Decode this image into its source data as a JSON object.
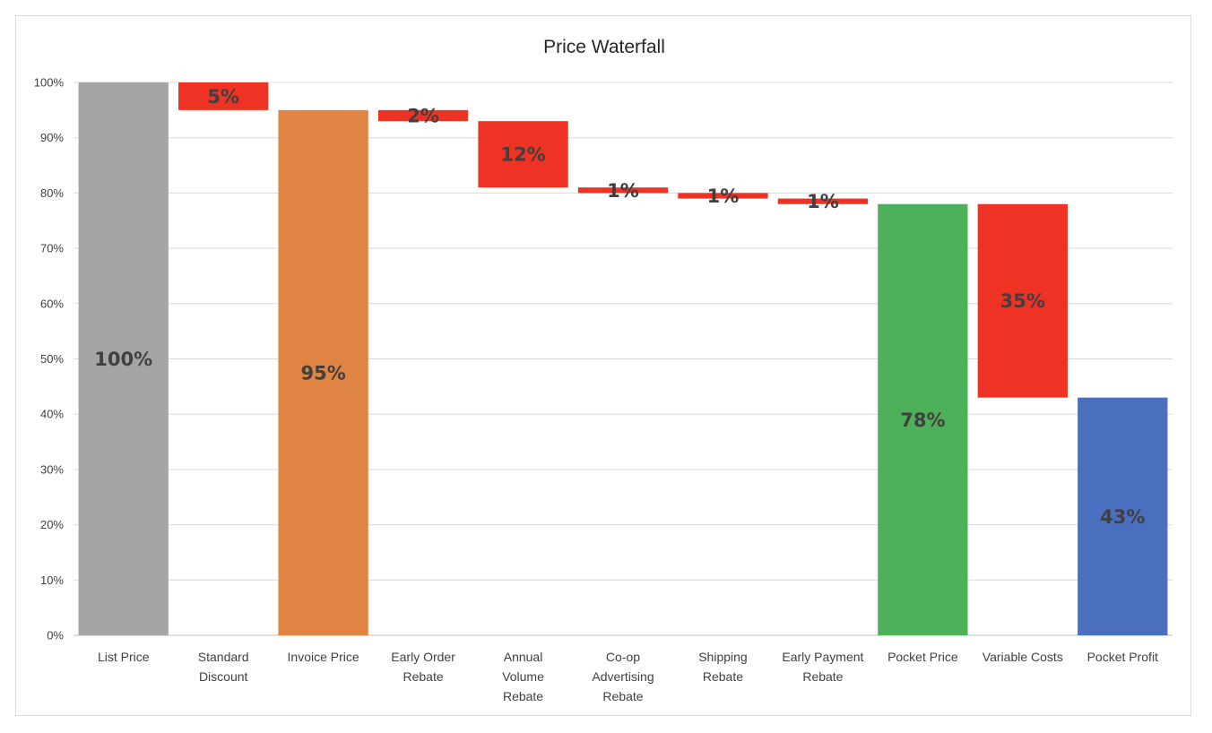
{
  "chart_data": {
    "type": "bar",
    "title": "Price Waterfall",
    "ylim": [
      0,
      100
    ],
    "yticks": [
      0,
      10,
      20,
      30,
      40,
      50,
      60,
      70,
      80,
      90,
      100
    ],
    "ytick_suffix": "%",
    "grid": true,
    "legend": "none",
    "categories": [
      "List Price",
      "Standard Discount",
      "Invoice Price",
      "Early Order Rebate",
      "Annual Volume Rebate",
      "Co-op Advertising Rebate",
      "Shipping Rebate",
      "Early Payment Rebate",
      "Pocket Price",
      "Variable Costs",
      "Pocket Profit"
    ],
    "category_lines": [
      [
        "List Price"
      ],
      [
        "Standard",
        "Discount"
      ],
      [
        "Invoice Price"
      ],
      [
        "Early Order",
        "Rebate"
      ],
      [
        "Annual",
        "Volume",
        "Rebate"
      ],
      [
        "Co-op",
        "Advertising",
        "Rebate"
      ],
      [
        "Shipping",
        "Rebate"
      ],
      [
        "Early Payment",
        "Rebate"
      ],
      [
        "Pocket Price"
      ],
      [
        "Variable Costs"
      ],
      [
        "Pocket Profit"
      ]
    ],
    "bars": [
      {
        "base": 0,
        "top": 100,
        "label": "100%",
        "color": "#a5a5a5"
      },
      {
        "base": 95,
        "top": 100,
        "label": "5%",
        "color": "#ee3224"
      },
      {
        "base": 0,
        "top": 95,
        "label": "95%",
        "color": "#e08443"
      },
      {
        "base": 93,
        "top": 95,
        "label": "2%",
        "color": "#ee3224"
      },
      {
        "base": 81,
        "top": 93,
        "label": "12%",
        "color": "#ee3224"
      },
      {
        "base": 80,
        "top": 81,
        "label": "1%",
        "color": "#ee3224"
      },
      {
        "base": 79,
        "top": 80,
        "label": "1%",
        "color": "#ee3224"
      },
      {
        "base": 78,
        "top": 79,
        "label": "1%",
        "color": "#ee3224"
      },
      {
        "base": 0,
        "top": 78,
        "label": "78%",
        "color": "#4fb05a"
      },
      {
        "base": 43,
        "top": 78,
        "label": "35%",
        "color": "#ee3224"
      },
      {
        "base": 0,
        "top": 43,
        "label": "43%",
        "color": "#4a6fbf"
      }
    ],
    "colors": {
      "gridline": "#d9d9d9",
      "axis": "#bfbfbf"
    }
  }
}
